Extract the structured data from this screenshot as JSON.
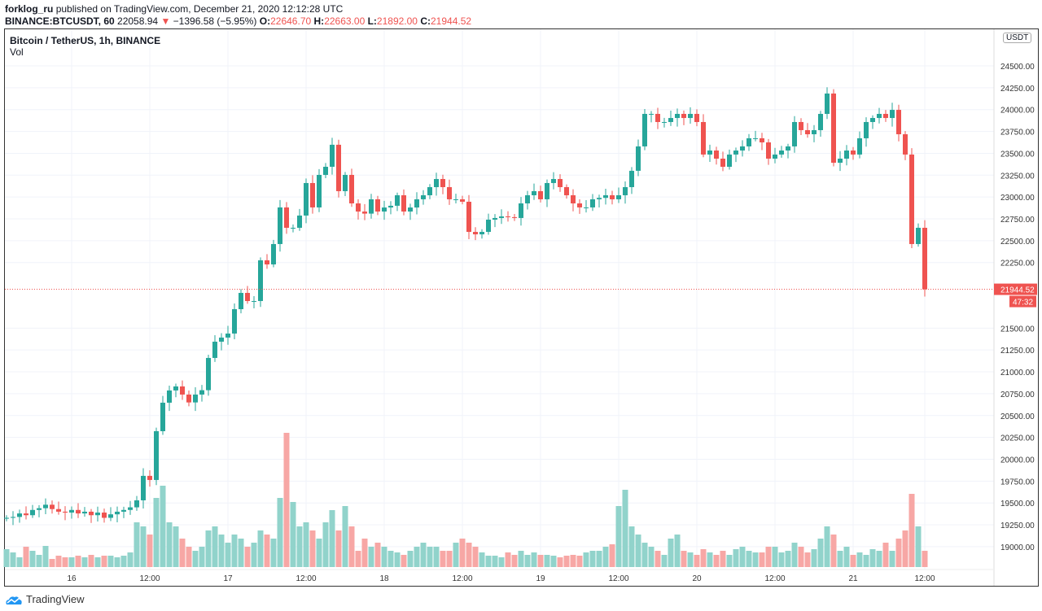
{
  "header": {
    "publisher": "forklog_ru",
    "published_text": "published on TradingView.com, December 21, 2020 12:12:28 UTC",
    "symbol": "BINANCE:BTCUSDT, 60",
    "last": "22058.94",
    "arrow": "▼",
    "change": "−1396.58 (−5.95%)",
    "o_label": "O:",
    "o": "22646.70",
    "h_label": "H:",
    "h": "22663.00",
    "l_label": "L:",
    "l": "21892.00",
    "c_label": "C:",
    "c": "21944.52"
  },
  "legend": {
    "title": "Bitcoin / TetherUS, 1h, BINANCE",
    "vol": "Vol"
  },
  "currency": "USDT",
  "footer": {
    "logo_text": "TradingView"
  },
  "colors": {
    "up": "#26a69a",
    "down": "#ef5350",
    "vol_up": "#91d3cb",
    "vol_down": "#f7a7a5"
  },
  "chart_data": {
    "type": "candlestick",
    "title": "Bitcoin / TetherUS, 1h, BINANCE",
    "ylim": [
      18800,
      24750
    ],
    "y_ticks": [
      "24500.00",
      "24250.00",
      "24000.00",
      "23750.00",
      "23500.00",
      "23250.00",
      "23000.00",
      "22750.00",
      "22500.00",
      "22250.00",
      "21500.00",
      "21250.00",
      "21000.00",
      "20750.00",
      "20500.00",
      "20250.00",
      "20000.00",
      "19750.00",
      "19500.00",
      "19250.00",
      "19000.00"
    ],
    "x_ticks": [
      {
        "i": 10,
        "label": "16"
      },
      {
        "i": 22,
        "label": "12:00"
      },
      {
        "i": 34,
        "label": "17"
      },
      {
        "i": 46,
        "label": "12:00"
      },
      {
        "i": 58,
        "label": "18"
      },
      {
        "i": 70,
        "label": "12:00"
      },
      {
        "i": 82,
        "label": "19"
      },
      {
        "i": 94,
        "label": "12:00"
      },
      {
        "i": 106,
        "label": "20"
      },
      {
        "i": 118,
        "label": "12:00"
      },
      {
        "i": 130,
        "label": "21"
      },
      {
        "i": 141,
        "label": "12:00"
      }
    ],
    "last_price_label": "21944.52",
    "countdown": "47:32",
    "last_price": 21944.52,
    "close": [
      19330,
      19340,
      19380,
      19360,
      19420,
      19440,
      19480,
      19430,
      19400,
      19390,
      19420,
      19380,
      19400,
      19360,
      19390,
      19330,
      19370,
      19400,
      19420,
      19450,
      19530,
      19810,
      19763,
      20321,
      20647,
      20787,
      20833,
      20740,
      20650,
      20740,
      20790,
      21159,
      21345,
      21392,
      21438,
      21717,
      21903,
      21810,
      21810,
      22276,
      22229,
      22462,
      22881,
      22648,
      22648,
      22788,
      23160,
      22881,
      23253,
      23346,
      23598,
      23067,
      23253,
      22927,
      22834,
      22810,
      22974,
      22834,
      22880,
      22900,
      23020,
      22834,
      22880,
      22974,
      23020,
      23113,
      23206,
      23113,
      22974,
      22974,
      22946,
      22601,
      22573,
      22601,
      22741,
      22760,
      22778,
      22770,
      22760,
      22927,
      23020,
      23067,
      22974,
      23160,
      23206,
      23113,
      23020,
      22927,
      22881,
      22881,
      22974,
      22990,
      23020,
      22974,
      23020,
      23113,
      23300,
      23579,
      23951,
      23951,
      23858,
      23858,
      23904,
      23951,
      23904,
      23951,
      23858,
      23486,
      23532,
      23439,
      23346,
      23486,
      23532,
      23579,
      23672,
      23672,
      23625,
      23439,
      23486,
      23532,
      23579,
      23858,
      23765,
      23718,
      23765,
      23951,
      24184,
      23392,
      23439,
      23532,
      23486,
      23672,
      23858,
      23904,
      23951,
      23904,
      23997,
      23718,
      23486,
      22462,
      22648,
      21944
    ],
    "first_open": 19320,
    "volume_relative": [
      22,
      18,
      12,
      25,
      20,
      15,
      26,
      10,
      14,
      12,
      12,
      14,
      12,
      15,
      12,
      14,
      14,
      12,
      14,
      18,
      55,
      50,
      40,
      85,
      100,
      55,
      50,
      35,
      25,
      20,
      25,
      45,
      50,
      40,
      30,
      40,
      35,
      25,
      30,
      45,
      40,
      35,
      85,
      165,
      80,
      50,
      55,
      45,
      35,
      55,
      70,
      45,
      75,
      50,
      20,
      35,
      25,
      30,
      25,
      20,
      18,
      15,
      20,
      25,
      30,
      25,
      25,
      20,
      20,
      30,
      35,
      30,
      25,
      18,
      14,
      14,
      12,
      18,
      15,
      20,
      15,
      18,
      15,
      15,
      14,
      12,
      14,
      15,
      14,
      18,
      20,
      20,
      25,
      28,
      75,
      95,
      50,
      40,
      30,
      25,
      20,
      15,
      35,
      40,
      20,
      18,
      15,
      22,
      18,
      15,
      20,
      15,
      22,
      25,
      20,
      18,
      18,
      25,
      25,
      18,
      20,
      30,
      25,
      18,
      22,
      35,
      50,
      40,
      20,
      25,
      15,
      18,
      15,
      22,
      20,
      30,
      20,
      35,
      45,
      90,
      50,
      20
    ]
  }
}
